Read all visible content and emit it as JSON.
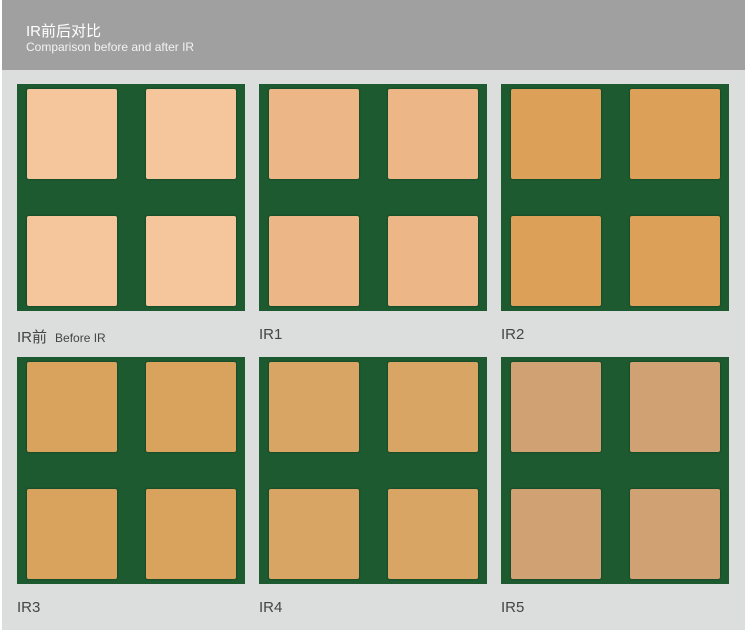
{
  "header": {
    "title": "IR前后对比",
    "subtitle": "Comparison before and after IR"
  },
  "panels": [
    {
      "label": "IR前",
      "sublabel": "Before IR",
      "pad_color": "#f5c59b"
    },
    {
      "label": "IR1",
      "sublabel": "",
      "pad_color": "#edb686"
    },
    {
      "label": "IR2",
      "sublabel": "",
      "pad_color": "#dca058"
    },
    {
      "label": "IR3",
      "sublabel": "",
      "pad_color": "#d9a35d"
    },
    {
      "label": "IR4",
      "sublabel": "",
      "pad_color": "#d9a564"
    },
    {
      "label": "IR5",
      "sublabel": "",
      "pad_color": "#cfa173"
    }
  ],
  "board_color": "#1d5a30"
}
